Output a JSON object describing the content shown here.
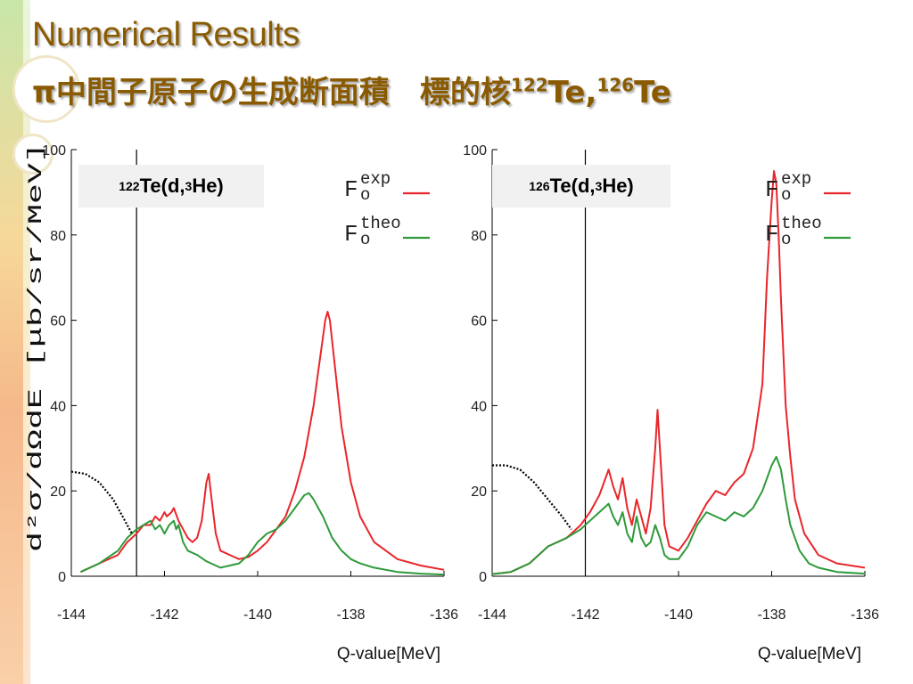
{
  "slide": {
    "title": "Numerical Results",
    "subtitle_text": "π中間子原子の生成断面積　標的核",
    "subtitle_mass1": "122",
    "subtitle_el1": "Te,",
    "subtitle_mass2": "126",
    "subtitle_el2": "Te"
  },
  "colors": {
    "title": "#8a5a00",
    "exp": "#e8262b",
    "theo": "#2e9a3a",
    "dotted": "#000000"
  },
  "chart_data": [
    {
      "type": "line",
      "reaction": {
        "mass_a": "122",
        "mid": "Te(d,",
        "mass_b": "3",
        "end": "He)"
      },
      "xlabel": "Q-value[MeV]",
      "ylabel": "d²σ/dΩdE [μb/sr/MeV]",
      "xlim": [
        -144,
        -136
      ],
      "ylim": [
        0,
        100
      ],
      "xticks": [
        "-144",
        "-142",
        "-140",
        "-138",
        "-136"
      ],
      "yticks": [
        "0",
        "20",
        "40",
        "60",
        "80",
        "100"
      ],
      "vline_x": -142.6,
      "legend": [
        {
          "base": "F",
          "sub": "o",
          "sup": "exp"
        },
        {
          "base": "F",
          "sub": "o",
          "sup": "theo"
        }
      ],
      "series": [
        {
          "key": "exp",
          "x": [
            -143.8,
            -143.4,
            -143.0,
            -142.8,
            -142.6,
            -142.45,
            -142.3,
            -142.2,
            -142.1,
            -142.0,
            -141.95,
            -141.85,
            -141.8,
            -141.7,
            -141.6,
            -141.5,
            -141.4,
            -141.3,
            -141.2,
            -141.1,
            -141.05,
            -141.0,
            -140.9,
            -140.8,
            -140.6,
            -140.4,
            -140.2,
            -140.0,
            -139.8,
            -139.6,
            -139.4,
            -139.2,
            -139.0,
            -138.8,
            -138.7,
            -138.6,
            -138.55,
            -138.5,
            -138.45,
            -138.4,
            -138.3,
            -138.2,
            -138.0,
            -137.8,
            -137.5,
            -137.0,
            -136.5,
            -136.0
          ],
          "y": [
            1,
            3,
            5,
            8,
            10,
            12,
            12,
            14,
            13,
            15,
            14,
            15,
            16,
            13,
            11,
            9,
            8,
            9,
            13,
            22,
            24,
            19,
            10,
            6,
            5,
            4,
            4.5,
            6,
            8,
            11,
            14,
            20,
            28,
            40,
            48,
            56,
            60,
            62,
            60,
            55,
            45,
            35,
            22,
            14,
            8,
            4,
            2.5,
            1.5
          ]
        },
        {
          "key": "theo",
          "x": [
            -143.8,
            -143.4,
            -143.0,
            -142.8,
            -142.6,
            -142.45,
            -142.3,
            -142.2,
            -142.1,
            -142.0,
            -141.9,
            -141.8,
            -141.75,
            -141.7,
            -141.6,
            -141.5,
            -141.3,
            -141.1,
            -141.0,
            -140.8,
            -140.6,
            -140.4,
            -140.2,
            -140.0,
            -139.8,
            -139.6,
            -139.4,
            -139.2,
            -139.0,
            -138.9,
            -138.8,
            -138.6,
            -138.4,
            -138.2,
            -138.0,
            -137.8,
            -137.5,
            -137.0,
            -136.5,
            -136.0
          ],
          "y": [
            1,
            3,
            6,
            9,
            11,
            12,
            13,
            11,
            12,
            10,
            12,
            13,
            11,
            12,
            8,
            6,
            5,
            3.5,
            3,
            2,
            2.5,
            3,
            5,
            8,
            10,
            11,
            13,
            16,
            19,
            19.5,
            18,
            14,
            9,
            6,
            4,
            3,
            2,
            1,
            0.6,
            0.4
          ]
        },
        {
          "key": "dotted",
          "x": [
            -144.0,
            -143.7,
            -143.4,
            -143.1,
            -142.9,
            -142.7
          ],
          "y": [
            24.5,
            24,
            22,
            18,
            14,
            10
          ]
        }
      ]
    },
    {
      "type": "line",
      "reaction": {
        "mass_a": "126",
        "mid": "Te(d,",
        "mass_b": "3",
        "end": "He)"
      },
      "xlabel": "Q-value[MeV]",
      "ylabel": "",
      "xlim": [
        -144,
        -136
      ],
      "ylim": [
        0,
        100
      ],
      "xticks": [
        "-144",
        "-142",
        "-140",
        "-138",
        "-136"
      ],
      "yticks": [
        "0",
        "20",
        "40",
        "60",
        "80",
        "100"
      ],
      "vline_x": -142.0,
      "legend": [
        {
          "base": "F",
          "sub": "o",
          "sup": "exp"
        },
        {
          "base": "F",
          "sub": "o",
          "sup": "theo"
        }
      ],
      "series": [
        {
          "key": "exp",
          "x": [
            -144.0,
            -143.6,
            -143.2,
            -142.8,
            -142.4,
            -142.1,
            -141.9,
            -141.7,
            -141.5,
            -141.4,
            -141.3,
            -141.2,
            -141.1,
            -141.0,
            -140.9,
            -140.8,
            -140.7,
            -140.6,
            -140.5,
            -140.45,
            -140.4,
            -140.3,
            -140.2,
            -140.0,
            -139.8,
            -139.6,
            -139.4,
            -139.2,
            -139.0,
            -138.8,
            -138.6,
            -138.4,
            -138.2,
            -138.1,
            -138.0,
            -137.95,
            -137.9,
            -137.85,
            -137.8,
            -137.7,
            -137.6,
            -137.5,
            -137.3,
            -137.0,
            -136.6,
            -136.0
          ],
          "y": [
            0.5,
            1,
            3,
            7,
            9,
            12,
            15,
            19,
            25,
            21,
            18,
            23,
            16,
            12,
            18,
            14,
            10,
            16,
            30,
            39,
            30,
            12,
            7,
            6,
            9,
            13,
            17,
            20,
            19,
            22,
            24,
            30,
            45,
            70,
            88,
            95,
            92,
            80,
            65,
            40,
            28,
            18,
            10,
            5,
            3,
            2
          ]
        },
        {
          "key": "theo",
          "x": [
            -144.0,
            -143.6,
            -143.2,
            -142.8,
            -142.4,
            -142.1,
            -141.9,
            -141.7,
            -141.5,
            -141.4,
            -141.3,
            -141.2,
            -141.1,
            -141.0,
            -140.9,
            -140.8,
            -140.7,
            -140.6,
            -140.5,
            -140.4,
            -140.3,
            -140.2,
            -140.0,
            -139.8,
            -139.6,
            -139.4,
            -139.2,
            -139.0,
            -138.8,
            -138.6,
            -138.4,
            -138.2,
            -138.0,
            -137.9,
            -137.8,
            -137.7,
            -137.6,
            -137.4,
            -137.2,
            -137.0,
            -136.6,
            -136.0
          ],
          "y": [
            0.5,
            1,
            3,
            7,
            9,
            11,
            13,
            15,
            17,
            14,
            12,
            15,
            10,
            8,
            14,
            9,
            7,
            8,
            12,
            9,
            5,
            4,
            4,
            7,
            12,
            15,
            14,
            13,
            15,
            14,
            16,
            20,
            26,
            28,
            25,
            18,
            12,
            6,
            3,
            2,
            1,
            0.6
          ]
        },
        {
          "key": "dotted",
          "x": [
            -144.0,
            -143.7,
            -143.4,
            -143.1,
            -142.8,
            -142.5,
            -142.3
          ],
          "y": [
            26,
            26,
            25,
            22,
            18,
            14,
            11
          ]
        }
      ]
    }
  ]
}
